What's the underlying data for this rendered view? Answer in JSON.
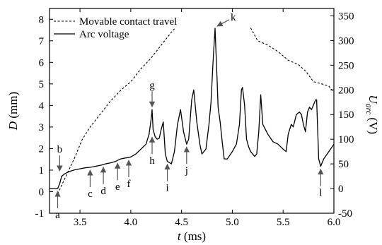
{
  "chart_data": {
    "type": "line",
    "x": {
      "label_var": "t",
      "label_unit": "(ms)",
      "range": [
        3.2,
        6.0
      ],
      "ticks": [
        3.5,
        4.0,
        4.5,
        5.0,
        5.5,
        6.0
      ],
      "tick_labels": [
        "3.5",
        "4.0",
        "4.5",
        "5.0",
        "5.5",
        "6.0"
      ]
    },
    "y_left": {
      "label_var": "D",
      "label_unit": "(mm)",
      "range": [
        -1,
        8.5
      ],
      "ticks": [
        -1,
        0,
        1,
        2,
        3,
        4,
        5,
        6,
        7,
        8
      ],
      "tick_labels": [
        "-1",
        "0",
        "1",
        "2",
        "3",
        "4",
        "5",
        "6",
        "7",
        "8"
      ]
    },
    "y_right": {
      "label_var": "U",
      "label_sub": "arc",
      "label_unit": "(V)",
      "range": [
        -50,
        365
      ],
      "ticks": [
        -50,
        0,
        50,
        100,
        150,
        200,
        250,
        300,
        350
      ],
      "tick_labels": [
        "-50",
        "0",
        "50",
        "100",
        "150",
        "200",
        "250",
        "300",
        "350"
      ]
    },
    "legend": {
      "placement": "top-left",
      "entries": [
        {
          "label": "Movable contact travel",
          "style": "dashed"
        },
        {
          "label": "Arc voltage",
          "style": "solid"
        }
      ]
    },
    "series": [
      {
        "name": "Movable contact travel",
        "axis": "left",
        "style": "dashed",
        "x": [
          3.28,
          3.32,
          3.38,
          3.45,
          3.52,
          3.6,
          3.7,
          3.8,
          3.9,
          4.0,
          4.1,
          4.2,
          4.3,
          4.4,
          4.44,
          null,
          5.18,
          5.25,
          5.35,
          5.45,
          5.55,
          5.65,
          5.72,
          5.8,
          5.88,
          5.95,
          6.0
        ],
        "y": [
          -0.1,
          0.3,
          0.9,
          1.6,
          2.4,
          3.0,
          3.6,
          4.2,
          4.7,
          5.1,
          5.7,
          6.2,
          6.8,
          7.4,
          7.6,
          null,
          7.6,
          7.0,
          6.8,
          6.5,
          6.1,
          5.9,
          5.6,
          5.1,
          5.0,
          4.9,
          4.6
        ]
      },
      {
        "name": "Arc voltage",
        "axis": "right",
        "style": "solid",
        "x": [
          3.2,
          3.28,
          3.3,
          3.32,
          3.35,
          3.4,
          3.45,
          3.5,
          3.55,
          3.6,
          3.65,
          3.7,
          3.75,
          3.8,
          3.85,
          3.9,
          3.95,
          4.0,
          4.05,
          4.1,
          4.15,
          4.18,
          4.2,
          4.21,
          4.22,
          4.24,
          4.26,
          4.28,
          4.3,
          4.32,
          4.34,
          4.36,
          4.4,
          4.43,
          4.46,
          4.49,
          4.52,
          4.55,
          4.57,
          4.6,
          4.62,
          4.65,
          4.68,
          4.7,
          4.72,
          4.74,
          4.77,
          4.79,
          4.81,
          4.83,
          4.85,
          4.86,
          4.88,
          4.9,
          4.92,
          4.95,
          5.0,
          5.04,
          5.07,
          5.09,
          5.1,
          5.12,
          5.14,
          5.16,
          5.18,
          5.2,
          5.22,
          5.24,
          5.26,
          5.28,
          5.3,
          5.35,
          5.4,
          5.45,
          5.5,
          5.53,
          5.55,
          5.58,
          5.6,
          5.63,
          5.66,
          5.68,
          5.7,
          5.72,
          5.74,
          5.76,
          5.78,
          5.8,
          5.82,
          5.83,
          5.85,
          5.87,
          5.9,
          5.95,
          6.0
        ],
        "y": [
          0,
          0,
          10,
          25,
          30,
          35,
          38,
          40,
          42,
          43,
          45,
          47,
          50,
          52,
          55,
          60,
          62,
          64,
          70,
          80,
          90,
          110,
          140,
          160,
          120,
          105,
          100,
          102,
          120,
          135,
          70,
          55,
          50,
          75,
          130,
          160,
          115,
          90,
          100,
          180,
          200,
          135,
          90,
          70,
          75,
          80,
          130,
          175,
          255,
          325,
          220,
          165,
          135,
          95,
          60,
          60,
          75,
          90,
          130,
          200,
          205,
          170,
          100,
          85,
          75,
          70,
          65,
          70,
          115,
          190,
          130,
          110,
          95,
          90,
          80,
          75,
          110,
          130,
          125,
          150,
          155,
          150,
          130,
          115,
          155,
          165,
          160,
          170,
          180,
          180,
          60,
          45,
          60,
          75,
          90
        ]
      }
    ],
    "annotations": [
      {
        "label": "a",
        "x": 3.28,
        "y_right": 0,
        "side": "below"
      },
      {
        "label": "b",
        "x": 3.3,
        "y_right": 30,
        "side": "above"
      },
      {
        "label": "c",
        "x": 3.6,
        "y_right": 43,
        "side": "below"
      },
      {
        "label": "d",
        "x": 3.73,
        "y_right": 49,
        "side": "below"
      },
      {
        "label": "e",
        "x": 3.87,
        "y_right": 57,
        "side": "below"
      },
      {
        "label": "f",
        "x": 3.98,
        "y_right": 63,
        "side": "below"
      },
      {
        "label": "g",
        "x": 4.21,
        "y_right": 160,
        "side": "above"
      },
      {
        "label": "h",
        "x": 4.21,
        "y_right": 110,
        "side": "below"
      },
      {
        "label": "i",
        "x": 4.36,
        "y_right": 55,
        "side": "below"
      },
      {
        "label": "j",
        "x": 4.55,
        "y_right": 90,
        "side": "below"
      },
      {
        "label": "k",
        "x": 4.83,
        "y_right": 325,
        "side": "above-right"
      },
      {
        "label": "l",
        "x": 5.87,
        "y_right": 45,
        "side": "below"
      }
    ]
  }
}
